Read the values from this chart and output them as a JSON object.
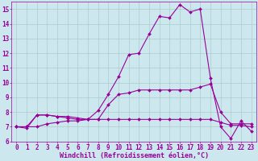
{
  "xlabel": "Windchill (Refroidissement éolien,°C)",
  "ylabel": "",
  "bg_color": "#cce8ee",
  "line_color": "#990099",
  "grid_color": "#aacccc",
  "xlim": [
    -0.5,
    23.5
  ],
  "ylim": [
    6,
    15.5
  ],
  "yticks": [
    6,
    7,
    8,
    9,
    10,
    11,
    12,
    13,
    14,
    15
  ],
  "xticks": [
    0,
    1,
    2,
    3,
    4,
    5,
    6,
    7,
    8,
    9,
    10,
    11,
    12,
    13,
    14,
    15,
    16,
    17,
    18,
    19,
    20,
    21,
    22,
    23
  ],
  "series1_x": [
    0,
    1,
    2,
    3,
    4,
    5,
    6,
    7,
    8,
    9,
    10,
    11,
    12,
    13,
    14,
    15,
    16,
    17,
    18,
    19,
    20,
    21,
    22,
    23
  ],
  "series1_y": [
    7.0,
    6.9,
    7.8,
    7.8,
    7.7,
    7.6,
    7.5,
    7.5,
    8.1,
    9.2,
    10.4,
    11.9,
    12.0,
    13.3,
    14.5,
    14.4,
    15.3,
    14.8,
    15.0,
    10.3,
    7.0,
    6.2,
    7.4,
    6.7
  ],
  "series2_x": [
    0,
    1,
    2,
    3,
    4,
    5,
    6,
    7,
    8,
    9,
    10,
    11,
    12,
    13,
    14,
    15,
    16,
    17,
    18,
    19,
    20,
    21,
    22,
    23
  ],
  "series2_y": [
    7.0,
    7.0,
    7.8,
    7.8,
    7.7,
    7.7,
    7.6,
    7.5,
    7.5,
    8.5,
    9.2,
    9.3,
    9.5,
    9.5,
    9.5,
    9.5,
    9.5,
    9.5,
    9.7,
    9.9,
    8.0,
    7.2,
    7.2,
    7.2
  ],
  "series3_x": [
    0,
    1,
    2,
    3,
    4,
    5,
    6,
    7,
    8,
    9,
    10,
    11,
    12,
    13,
    14,
    15,
    16,
    17,
    18,
    19,
    20,
    21,
    22,
    23
  ],
  "series3_y": [
    7.0,
    7.0,
    7.0,
    7.2,
    7.3,
    7.4,
    7.4,
    7.5,
    7.5,
    7.5,
    7.5,
    7.5,
    7.5,
    7.5,
    7.5,
    7.5,
    7.5,
    7.5,
    7.5,
    7.5,
    7.3,
    7.1,
    7.1,
    7.0
  ],
  "tick_fontsize": 5.5,
  "xlabel_fontsize": 6.0
}
